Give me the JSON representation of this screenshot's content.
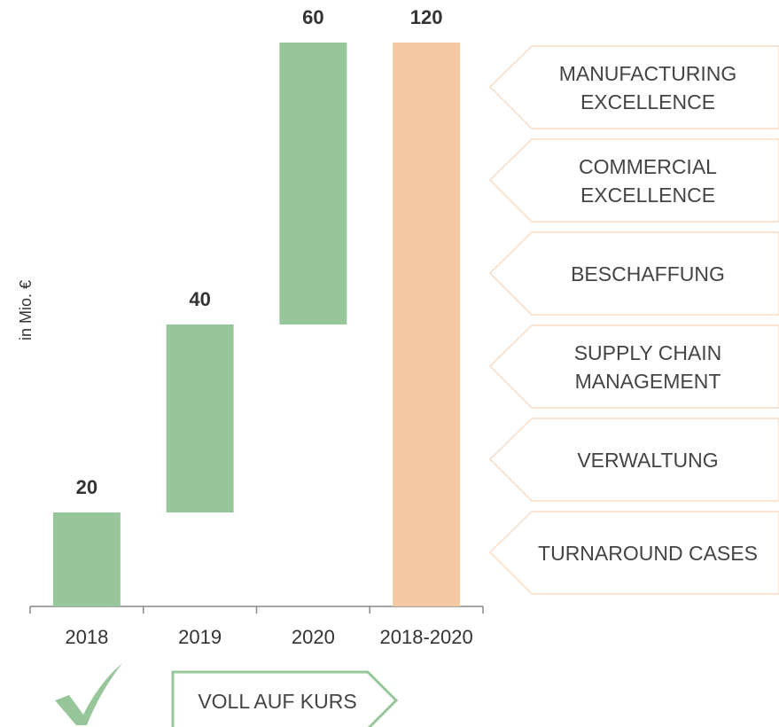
{
  "chart_data": {
    "type": "waterfall",
    "categories": [
      "2018",
      "2019",
      "2020",
      "2018-2020"
    ],
    "values": [
      20,
      40,
      60,
      120
    ],
    "measure": [
      "relative",
      "relative",
      "relative",
      "total"
    ],
    "colors": [
      "#97c69a",
      "#97c69a",
      "#97c69a",
      "#f5c9a4"
    ],
    "ylim": [
      0,
      120
    ],
    "ylabel": "in Mio. €"
  },
  "levers": [
    "MANUFACTURING\nEXCELLENCE",
    "COMMERCIAL\nEXCELLENCE",
    "BESCHAFFUNG",
    "SUPPLY CHAIN\nMANAGEMENT",
    "VERWALTUNG",
    "TURNAROUND CASES"
  ],
  "status": "VOLL AUF KURS"
}
